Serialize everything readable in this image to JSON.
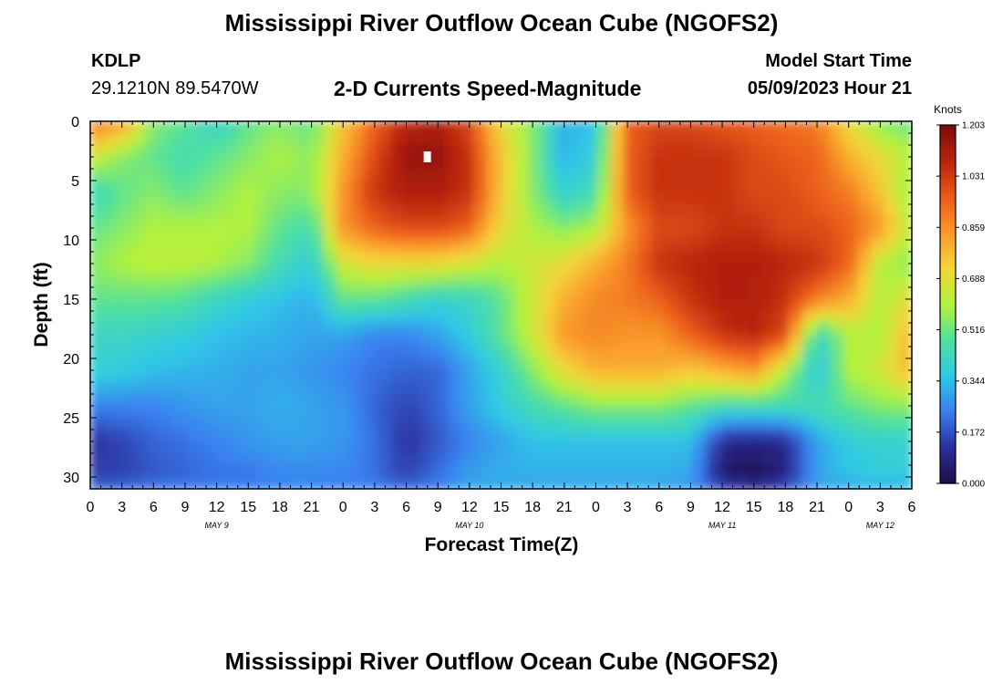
{
  "page": {
    "title_top": "Mississippi River Outflow Ocean Cube (NGOFS2)",
    "title_bottom": "Mississippi River Outflow Ocean Cube (NGOFS2)",
    "station_id": "KDLP",
    "station_coords": "29.1210N  89.5470W",
    "subtitle": "2-D Currents Speed-Magnitude",
    "model_start_label": "Model Start Time",
    "model_start_value": "05/09/2023 Hour 21"
  },
  "chart_data": {
    "type": "heatmap",
    "title": "2-D Currents Speed-Magnitude",
    "xlabel": "Forecast Time(Z)",
    "ylabel": "Depth (ft)",
    "x_range_hours": [
      0,
      78
    ],
    "ylim": [
      0,
      31
    ],
    "y_ticks": [
      0,
      5,
      10,
      15,
      20,
      25,
      30
    ],
    "x_tick_labels": [
      "0",
      "3",
      "6",
      "9",
      "12",
      "15",
      "18",
      "21",
      "0",
      "3",
      "6",
      "9",
      "12",
      "15",
      "18",
      "21",
      "0",
      "3",
      "6",
      "9",
      "12",
      "15",
      "18",
      "21",
      "0",
      "3",
      "6"
    ],
    "date_labels": [
      {
        "label": "MAY 9",
        "hour": 12
      },
      {
        "label": "MAY 10",
        "hour": 36
      },
      {
        "label": "MAY 11",
        "hour": 60
      },
      {
        "label": "MAY 12",
        "hour": 75
      }
    ],
    "colorbar": {
      "title": "Knots",
      "min": 0.0,
      "max": 1.203,
      "tick_labels": [
        "1.203",
        "1.031",
        "0.859",
        "0.688",
        "0.516",
        "0.344",
        "0.172",
        "0.000"
      ],
      "colors": [
        "#1f0d45",
        "#2b2e9c",
        "#3a7ff0",
        "#2fc8e6",
        "#4fe0a0",
        "#b3f23c",
        "#f4d53a",
        "#fa9a2b",
        "#ea5a1a",
        "#b9230d",
        "#7a0a08"
      ]
    },
    "grid": false,
    "max_marker": {
      "hour": 32,
      "depth": 3
    },
    "rows": [
      {
        "depth": 0,
        "values": [
          0.93,
          0.85,
          0.55,
          0.5,
          0.4,
          0.5,
          0.55,
          0.5,
          0.75,
          0.95,
          1.08,
          1.1,
          1.0,
          0.7,
          0.55,
          0.32,
          0.35,
          0.95,
          1.0,
          1.0,
          0.97,
          0.95,
          0.92,
          0.9,
          0.7,
          0.55,
          0.5
        ]
      },
      {
        "depth": 3,
        "values": [
          0.65,
          0.55,
          0.5,
          0.45,
          0.5,
          0.55,
          0.6,
          0.55,
          0.8,
          1.0,
          1.15,
          1.15,
          1.05,
          0.75,
          0.55,
          0.32,
          0.4,
          0.95,
          1.05,
          1.05,
          1.05,
          1.0,
          0.97,
          0.95,
          0.8,
          0.7,
          0.6
        ]
      },
      {
        "depth": 6,
        "values": [
          0.42,
          0.5,
          0.55,
          0.5,
          0.55,
          0.6,
          0.55,
          0.55,
          0.85,
          1.05,
          1.1,
          1.1,
          1.05,
          0.75,
          0.55,
          0.4,
          0.45,
          0.95,
          1.05,
          1.05,
          1.05,
          1.0,
          1.0,
          0.95,
          0.9,
          0.75,
          0.55
        ]
      },
      {
        "depth": 9,
        "values": [
          0.5,
          0.55,
          0.6,
          0.6,
          0.6,
          0.6,
          0.5,
          0.45,
          0.85,
          0.95,
          1.0,
          1.0,
          0.95,
          0.7,
          0.6,
          0.55,
          0.6,
          0.85,
          1.0,
          1.0,
          1.05,
          1.05,
          1.0,
          1.0,
          0.95,
          0.85,
          0.6
        ]
      },
      {
        "depth": 12,
        "values": [
          0.55,
          0.6,
          0.62,
          0.62,
          0.6,
          0.55,
          0.45,
          0.38,
          0.65,
          0.7,
          0.7,
          0.7,
          0.65,
          0.6,
          0.65,
          0.7,
          0.8,
          0.9,
          1.05,
          1.08,
          1.1,
          1.1,
          1.08,
          1.05,
          0.95,
          0.6,
          0.55
        ]
      },
      {
        "depth": 15,
        "values": [
          0.5,
          0.5,
          0.5,
          0.48,
          0.42,
          0.38,
          0.35,
          0.32,
          0.5,
          0.5,
          0.45,
          0.4,
          0.42,
          0.5,
          0.65,
          0.8,
          0.88,
          0.9,
          0.95,
          1.05,
          1.1,
          1.1,
          1.05,
          0.9,
          0.8,
          0.6,
          0.7
        ]
      },
      {
        "depth": 18,
        "values": [
          0.42,
          0.42,
          0.4,
          0.38,
          0.35,
          0.33,
          0.32,
          0.3,
          0.3,
          0.25,
          0.25,
          0.3,
          0.38,
          0.5,
          0.65,
          0.85,
          0.88,
          0.85,
          0.85,
          0.95,
          1.05,
          1.08,
          1.0,
          0.4,
          0.6,
          0.6,
          0.8
        ]
      },
      {
        "depth": 21,
        "values": [
          0.4,
          0.38,
          0.35,
          0.33,
          0.32,
          0.3,
          0.3,
          0.28,
          0.25,
          0.22,
          0.2,
          0.2,
          0.3,
          0.4,
          0.55,
          0.7,
          0.8,
          0.8,
          0.8,
          0.75,
          0.8,
          0.85,
          0.6,
          0.35,
          0.6,
          0.65,
          0.8
        ]
      },
      {
        "depth": 24,
        "values": [
          0.25,
          0.25,
          0.25,
          0.28,
          0.3,
          0.3,
          0.32,
          0.3,
          0.28,
          0.2,
          0.15,
          0.2,
          0.3,
          0.38,
          0.45,
          0.5,
          0.55,
          0.55,
          0.55,
          0.5,
          0.45,
          0.45,
          0.45,
          0.45,
          0.5,
          0.55,
          0.55
        ]
      },
      {
        "depth": 27,
        "values": [
          0.12,
          0.15,
          0.2,
          0.22,
          0.25,
          0.28,
          0.3,
          0.3,
          0.28,
          0.22,
          0.12,
          0.18,
          0.25,
          0.3,
          0.35,
          0.35,
          0.35,
          0.35,
          0.35,
          0.35,
          0.1,
          0.08,
          0.1,
          0.3,
          0.38,
          0.4,
          0.4
        ]
      },
      {
        "depth": 30,
        "values": [
          0.15,
          0.15,
          0.18,
          0.2,
          0.22,
          0.22,
          0.25,
          0.25,
          0.25,
          0.22,
          0.15,
          0.22,
          0.3,
          0.32,
          0.32,
          0.32,
          0.32,
          0.32,
          0.32,
          0.3,
          0.05,
          0.02,
          0.08,
          0.3,
          0.35,
          0.38,
          0.38
        ]
      },
      {
        "depth": 31,
        "values": [
          0.22,
          0.22,
          0.25,
          0.25,
          0.25,
          0.25,
          0.25,
          0.25,
          0.25,
          0.25,
          0.22,
          0.25,
          0.3,
          0.3,
          0.3,
          0.3,
          0.3,
          0.3,
          0.3,
          0.28,
          0.2,
          0.15,
          0.2,
          0.3,
          0.3,
          0.3,
          0.3
        ]
      }
    ]
  }
}
